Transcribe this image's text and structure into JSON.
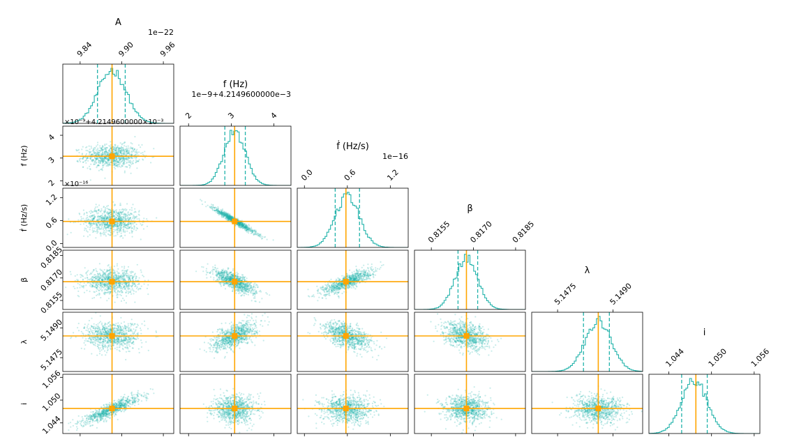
{
  "chart_data": {
    "type": "corner",
    "parameters": [
      {
        "key": "A",
        "title": "A",
        "label": "",
        "exponent": "1e−22",
        "ticks": [
          "9.84",
          "9.90",
          "9.96"
        ],
        "tick_values": [
          9.84,
          9.9,
          9.96
        ],
        "range": [
          9.815,
          9.975
        ],
        "mean": 9.886,
        "sigma": 0.02,
        "q16": 9.865,
        "q84": 9.905,
        "truth": 9.886
      },
      {
        "key": "f",
        "title": "f (Hz)",
        "label": "f (Hz)",
        "exponent": "1e−9+4.2149600000e−3",
        "ticks": [
          "2",
          "3",
          "4"
        ],
        "tick_values": [
          2,
          3,
          4
        ],
        "range": [
          1.8,
          4.4
        ],
        "mean": 3.08,
        "sigma": 0.25,
        "q16": 2.85,
        "q84": 3.33,
        "truth": 3.08
      },
      {
        "key": "fdot",
        "title": "ḟ (Hz/s)",
        "label": "ḟ (Hz/s)",
        "exponent": "1e−16",
        "ticks": [
          "0.0",
          "0.6",
          "1.2"
        ],
        "tick_values": [
          0.0,
          0.6,
          1.2
        ],
        "range": [
          -0.1,
          1.45
        ],
        "mean": 0.6,
        "sigma": 0.17,
        "q16": 0.43,
        "q84": 0.77,
        "truth": 0.58
      },
      {
        "key": "beta",
        "title": "β",
        "label": "β",
        "exponent": "",
        "ticks": [
          "0.8155",
          "0.8170",
          "0.8185"
        ],
        "tick_values": [
          0.8155,
          0.817,
          0.8185
        ],
        "range": [
          0.8149,
          0.81885
        ],
        "mean": 0.81675,
        "sigma": 0.0004,
        "q16": 0.81645,
        "q84": 0.81715,
        "truth": 0.81675
      },
      {
        "key": "lambda",
        "title": "λ",
        "label": "λ",
        "exponent": "",
        "ticks": [
          "5.1475",
          "5.1490"
        ],
        "tick_values": [
          5.1475,
          5.149
        ],
        "range": [
          5.1468,
          5.1498
        ],
        "mean": 5.1486,
        "sigma": 0.00035,
        "q16": 5.1482,
        "q84": 5.1489,
        "truth": 5.1486
      },
      {
        "key": "inc",
        "title": "i",
        "label": "i",
        "exponent": "",
        "ticks": [
          "1.044",
          "1.050",
          "1.056"
        ],
        "tick_values": [
          1.044,
          1.05,
          1.056
        ],
        "range": [
          1.0412,
          1.0568
        ],
        "mean": 1.0476,
        "sigma": 0.0018,
        "q16": 1.0458,
        "q84": 1.0494,
        "truth": 1.0478
      }
    ],
    "correlations": [
      [
        1,
        0,
        0,
        0,
        0,
        0.88
      ],
      [
        0,
        1,
        -0.97,
        -0.75,
        0.6,
        0
      ],
      [
        0,
        -0.97,
        1,
        0.8,
        -0.55,
        0
      ],
      [
        0,
        -0.75,
        0.8,
        1,
        -0.35,
        0
      ],
      [
        0,
        0.6,
        -0.55,
        -0.35,
        1,
        0
      ],
      [
        0.88,
        0,
        0,
        0,
        0,
        1
      ]
    ],
    "offset_labels": [
      {
        "row": 1,
        "text": "×10⁻⁹+4.2149600000×10⁻³"
      },
      {
        "row": 2,
        "text": "×10⁻¹⁶"
      }
    ],
    "truth_color": "#ffa500",
    "sample_color": "#20b2aa",
    "quantiles": [
      0.16,
      0.84
    ]
  }
}
